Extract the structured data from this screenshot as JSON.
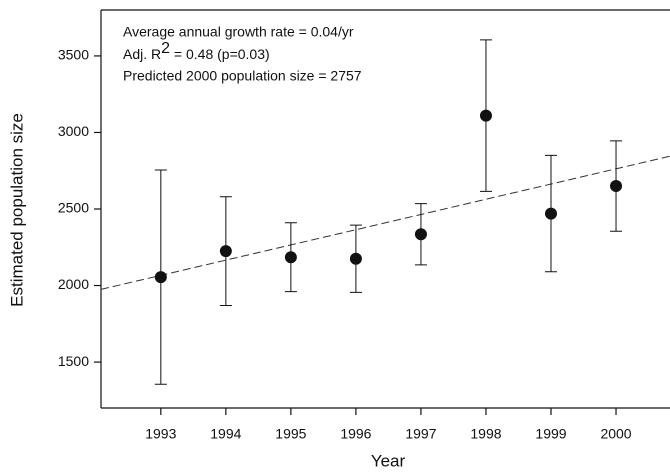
{
  "chart_data": {
    "type": "errorbar",
    "annotations": [
      "Average annual growth rate = 0.04/yr",
      [
        "Adj. R",
        "2",
        " = 0.48 (p=0.03)"
      ],
      "Predicted 2000 population size = 2757"
    ],
    "x_label": "Year",
    "y_label": "Estimated population size",
    "x": [
      1993,
      1994,
      1995,
      1996,
      1997,
      1998,
      1999,
      2000
    ],
    "values": [
      2055,
      2225,
      2185,
      2175,
      2335,
      3110,
      2470,
      2650
    ],
    "errors": [
      700,
      355,
      225,
      220,
      200,
      495,
      380,
      295
    ],
    "color": "#111111",
    "trend": {
      "x": [
        1992.08,
        2000.83
      ],
      "values": [
        1975,
        2845
      ]
    },
    "xlim": [
      1992.08,
      2000.83
    ],
    "ylim": [
      1200,
      3800
    ],
    "xticks": [
      1993,
      1994,
      1995,
      1996,
      1997,
      1998,
      1999,
      2000
    ],
    "yticks": [
      1500,
      2000,
      2500,
      3000,
      3500
    ]
  }
}
